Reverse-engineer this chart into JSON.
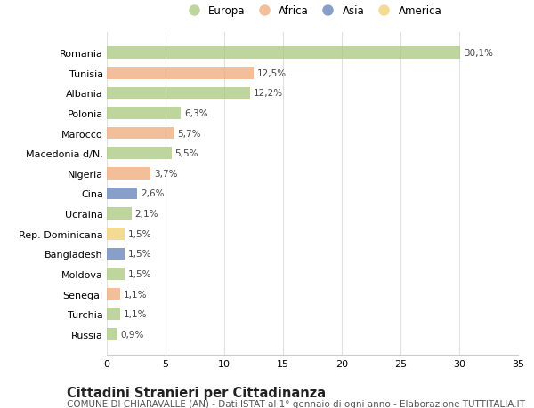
{
  "categories": [
    "Romania",
    "Tunisia",
    "Albania",
    "Polonia",
    "Marocco",
    "Macedonia d/N.",
    "Nigeria",
    "Cina",
    "Ucraina",
    "Rep. Dominicana",
    "Bangladesh",
    "Moldova",
    "Senegal",
    "Turchia",
    "Russia"
  ],
  "values": [
    30.1,
    12.5,
    12.2,
    6.3,
    5.7,
    5.5,
    3.7,
    2.6,
    2.1,
    1.5,
    1.5,
    1.5,
    1.1,
    1.1,
    0.9
  ],
  "labels": [
    "30,1%",
    "12,5%",
    "12,2%",
    "6,3%",
    "5,7%",
    "5,5%",
    "3,7%",
    "2,6%",
    "2,1%",
    "1,5%",
    "1,5%",
    "1,5%",
    "1,1%",
    "1,1%",
    "0,9%"
  ],
  "colors": [
    "#a8c87e",
    "#f0a878",
    "#a8c87e",
    "#a8c87e",
    "#f0a878",
    "#a8c87e",
    "#f0a878",
    "#6080b8",
    "#a8c87e",
    "#f0d070",
    "#6080b8",
    "#a8c87e",
    "#f0a878",
    "#a8c87e",
    "#a8c87e"
  ],
  "legend_labels": [
    "Europa",
    "Africa",
    "Asia",
    "America"
  ],
  "legend_colors": [
    "#a8c87e",
    "#f0a878",
    "#6080b8",
    "#f0d070"
  ],
  "xlim": [
    0,
    35
  ],
  "xticks": [
    0,
    5,
    10,
    15,
    20,
    25,
    30,
    35
  ],
  "bg_color": "#ffffff",
  "grid_color": "#e0e0e0",
  "title": "Cittadini Stranieri per Cittadinanza",
  "subtitle": "COMUNE DI CHIARAVALLE (AN) - Dati ISTAT al 1° gennaio di ogni anno - Elaborazione TUTTITALIA.IT",
  "bar_height": 0.6,
  "bar_alpha": 0.75,
  "label_fontsize": 7.5,
  "ytick_fontsize": 8.0,
  "xtick_fontsize": 8.0,
  "legend_fontsize": 8.5,
  "title_fontsize": 10.5,
  "subtitle_fontsize": 7.5
}
